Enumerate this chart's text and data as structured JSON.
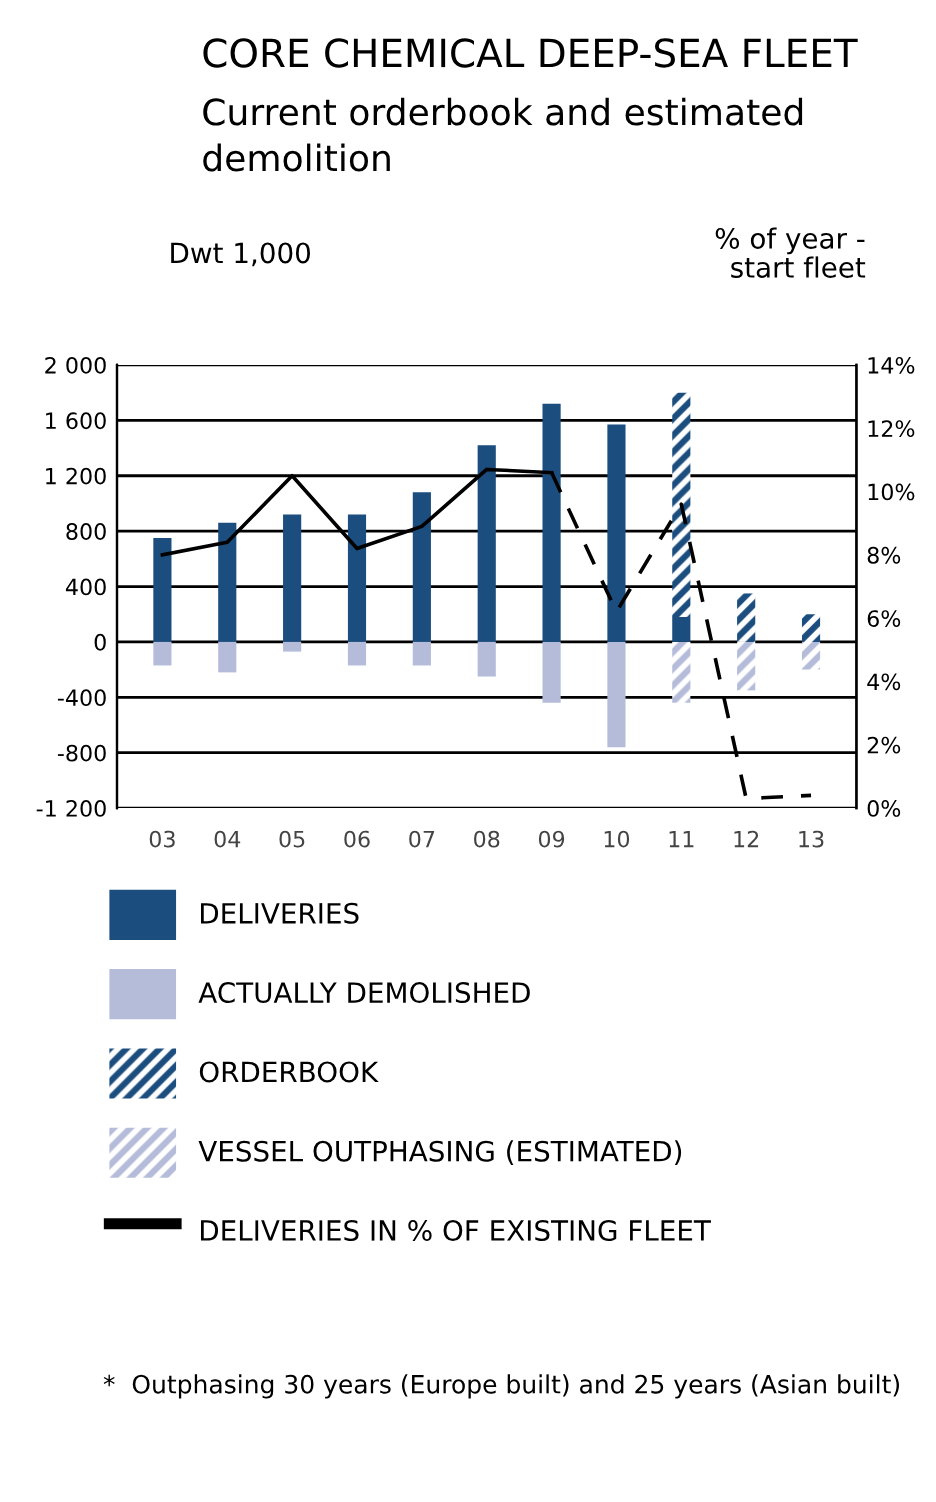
{
  "chart_data": {
    "type": "bar",
    "title": "CORE CHEMICAL DEEP-SEA FLEET",
    "subtitle": "Current orderbook and estimated demolition",
    "ylabel": "Dwt 1,000",
    "y2label": "% of year -\nstart fleet",
    "categories": [
      "03",
      "04",
      "05",
      "06",
      "07",
      "08",
      "09",
      "10",
      "11",
      "12",
      "13"
    ],
    "stacked": true,
    "series": [
      {
        "name": "DELIVERIES",
        "color": "#1b4d7e",
        "values": [
          750,
          860,
          920,
          920,
          1080,
          1420,
          1720,
          1570,
          180,
          null,
          null
        ]
      },
      {
        "name": "ACTUALLY DEMOLISHED",
        "color": "#b4bcd9",
        "values": [
          -170,
          -220,
          -70,
          -170,
          -170,
          -250,
          -440,
          -760,
          null,
          null,
          null
        ]
      },
      {
        "name": "ORDERBOOK",
        "color": "#1b4d7e",
        "values": [
          null,
          null,
          null,
          null,
          null,
          null,
          null,
          null,
          1620,
          350,
          200
        ]
      },
      {
        "name": "VESSEL OUTPHASING (ESTIMATED)",
        "color": "#b4bcd9",
        "values": [
          null,
          null,
          null,
          null,
          null,
          null,
          null,
          null,
          -440,
          -350,
          -200
        ]
      },
      {
        "name": "DELIVERIES IN % OF EXISTING FLEET",
        "type": "line",
        "axis": "y2",
        "color": "#000000",
        "line_style": "solid",
        "values": [
          8.0,
          8.4,
          10.5,
          8.2,
          8.9,
          10.7,
          10.6,
          null,
          null,
          null,
          null
        ]
      },
      {
        "type": "line",
        "axis": "y2",
        "color": "#000000",
        "line_style": "dashed",
        "values": [
          null,
          null,
          null,
          null,
          null,
          null,
          10.6,
          6.2,
          9.6,
          0.3,
          0.4
        ]
      }
    ],
    "ylim": [
      -1200,
      2000
    ],
    "yticks": [
      {
        "value": -1200,
        "label": "-1 200"
      },
      -800,
      -400,
      0,
      400,
      800,
      {
        "value": 1200,
        "label": "1 200"
      },
      {
        "value": 1600,
        "label": "1 600"
      },
      {
        "value": 2000,
        "label": "2 000"
      }
    ],
    "y2lim": [
      0,
      14
    ],
    "y2ticks": [
      {
        "value": 0,
        "label": "0%"
      },
      {
        "value": 2,
        "label": "2%"
      },
      {
        "value": 4,
        "label": "4%"
      },
      {
        "value": 6,
        "label": "6%"
      },
      {
        "value": 8,
        "label": "8%"
      },
      {
        "value": 10,
        "label": "10%"
      },
      {
        "value": 12,
        "label": "12%"
      },
      {
        "value": 14,
        "label": "14%"
      }
    ],
    "grid": "y",
    "legend": "bottom",
    "annotations": [
      "*  Outphasing 30 years (Europe built) and 25 years (Asian built)"
    ]
  }
}
